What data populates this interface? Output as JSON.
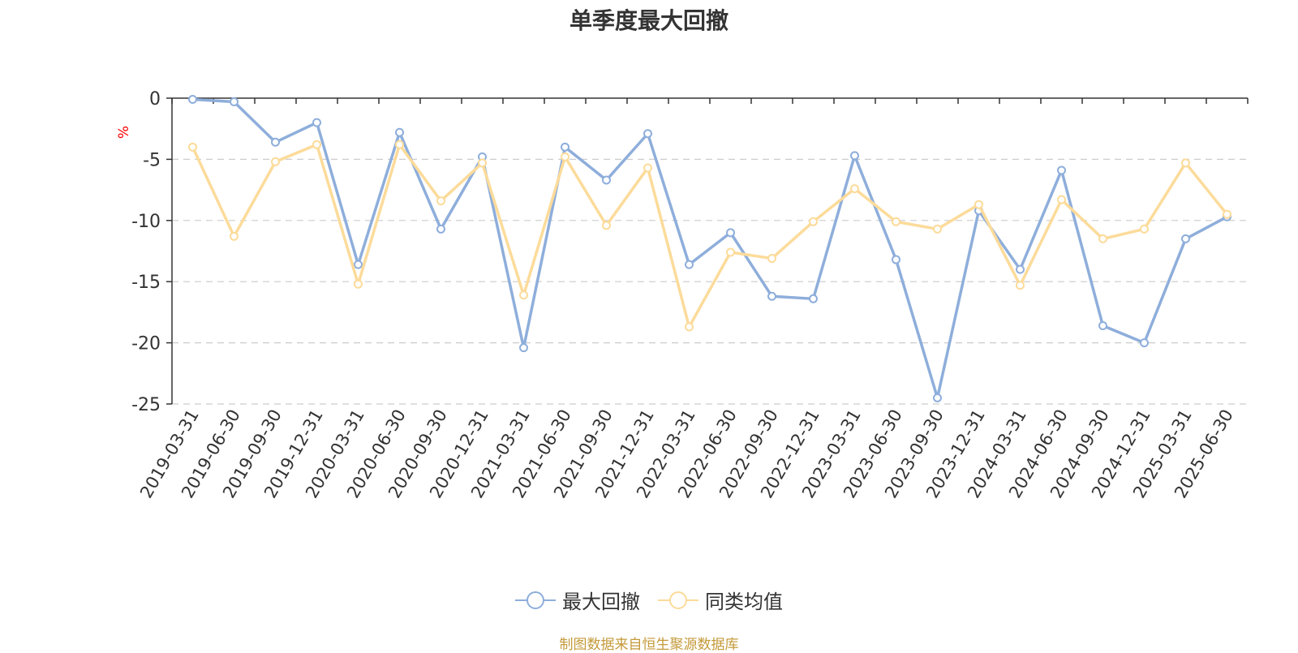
{
  "title": "单季度最大回撤",
  "source_note": "制图数据来自恒生聚源数据库",
  "colors": {
    "series_max_drawdown": "#8eaedb",
    "series_peer_average": "#fcdb9a",
    "axis": "#333333",
    "grid": "#cccccc",
    "ylabel": "#ff0000",
    "source_note": "#c49a3a"
  },
  "chart_data": {
    "type": "line",
    "title": "单季度最大回撤",
    "ylabel": "%",
    "xlabel": "",
    "ylim": [
      -25,
      0
    ],
    "yticks": [
      0,
      -5,
      -10,
      -15,
      -20,
      -25
    ],
    "grid": "horizontal-dashed",
    "legend_position": "bottom",
    "categories": [
      "2019-03-31",
      "2019-06-30",
      "2019-09-30",
      "2019-12-31",
      "2020-03-31",
      "2020-06-30",
      "2020-09-30",
      "2020-12-31",
      "2021-03-31",
      "2021-06-30",
      "2021-09-30",
      "2021-12-31",
      "2022-03-31",
      "2022-06-30",
      "2022-09-30",
      "2022-12-31",
      "2023-03-31",
      "2023-06-30",
      "2023-09-30",
      "2023-12-31",
      "2024-03-31",
      "2024-06-30",
      "2024-09-30",
      "2024-12-31",
      "2025-03-31",
      "2025-06-30"
    ],
    "series": [
      {
        "name": "最大回撤",
        "color": "#8eaedb",
        "values": [
          -0.1,
          -0.3,
          -3.6,
          -2.0,
          -13.6,
          -2.8,
          -10.7,
          -4.8,
          -20.4,
          -4.0,
          -6.7,
          -2.9,
          -13.6,
          -11.0,
          -16.2,
          -16.4,
          -4.7,
          -13.2,
          -24.5,
          -9.2,
          -14.0,
          -5.9,
          -18.6,
          -20.0,
          -11.5,
          -9.7
        ]
      },
      {
        "name": "同类均值",
        "color": "#fcdb9a",
        "values": [
          -4.0,
          -11.3,
          -5.2,
          -3.8,
          -15.2,
          -3.8,
          -8.4,
          -5.3,
          -16.1,
          -4.8,
          -10.4,
          -5.7,
          -18.7,
          -12.6,
          -13.1,
          -10.1,
          -7.4,
          -10.1,
          -10.7,
          -8.7,
          -15.3,
          -8.3,
          -11.5,
          -10.7,
          -5.3,
          -9.5
        ]
      }
    ]
  }
}
